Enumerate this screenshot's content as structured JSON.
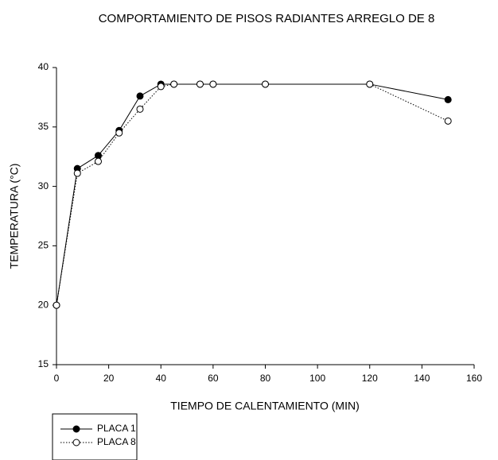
{
  "chart_data": {
    "type": "line",
    "title": "COMPORTAMIENTO DE PISOS RADIANTES ARREGLO DE 8",
    "xlabel": "TIEMPO DE CALENTAMIENTO (MIN)",
    "ylabel": "TEMPERATURA (°C)",
    "x": [
      0,
      8,
      16,
      24,
      32,
      40,
      45,
      55,
      60,
      80,
      120,
      150
    ],
    "series": [
      {
        "name": "PLACA 1",
        "color": "#000000",
        "values": [
          20,
          31.5,
          32.6,
          34.7,
          37.6,
          38.6,
          38.6,
          38.6,
          38.6,
          38.6,
          38.6,
          37.3
        ]
      },
      {
        "name": "PLACA 8",
        "color": "#000000",
        "values": [
          20,
          31.1,
          32.1,
          34.5,
          36.5,
          38.4,
          38.6,
          38.6,
          38.6,
          38.6,
          38.6,
          35.5
        ]
      }
    ],
    "xlim": [
      0,
      160
    ],
    "xticks": [
      0,
      20,
      40,
      60,
      80,
      100,
      120,
      140,
      160
    ],
    "ylim": [
      15,
      40
    ],
    "yticks": [
      15,
      20,
      25,
      30,
      35,
      40
    ]
  }
}
